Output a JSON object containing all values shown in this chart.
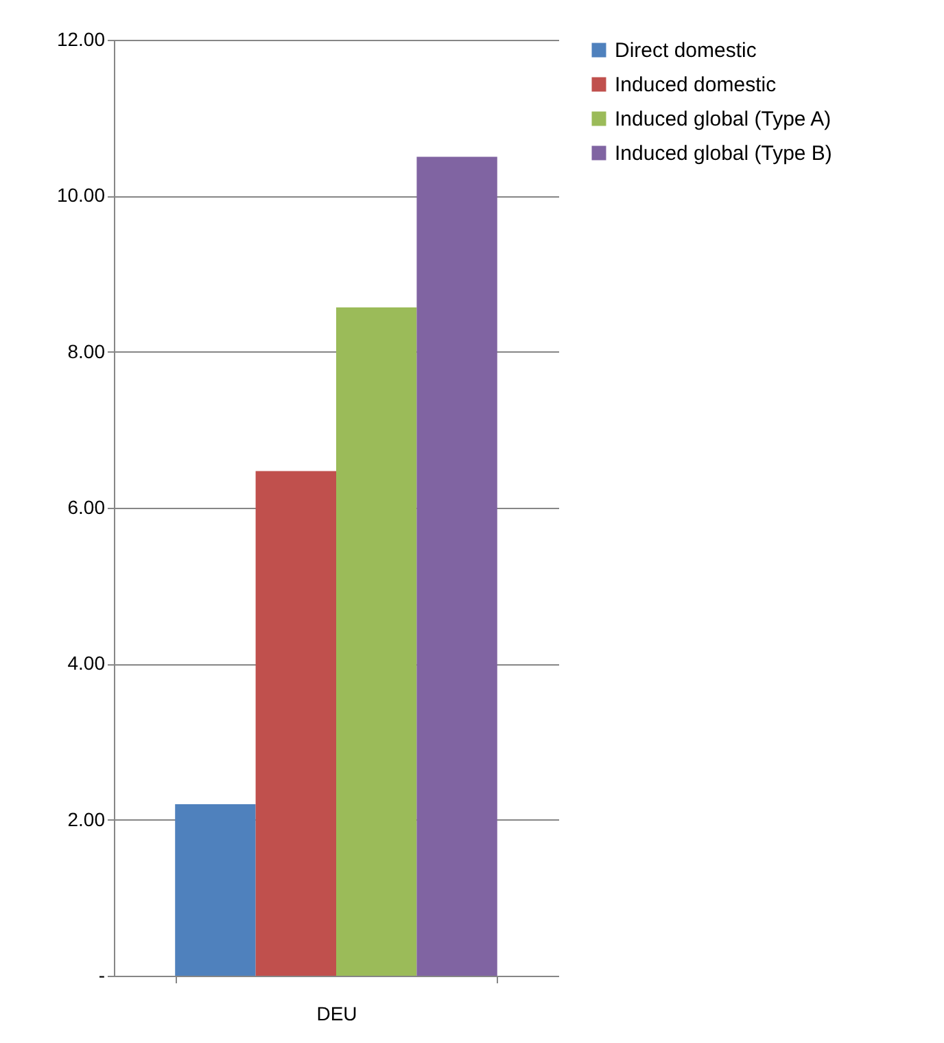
{
  "chart_data": {
    "type": "bar",
    "categories": [
      "DEU"
    ],
    "series": [
      {
        "name": "Direct domestic",
        "color": "#4f81bd",
        "values": [
          2.2
        ]
      },
      {
        "name": "Induced domestic",
        "color": "#c0504d",
        "values": [
          6.47
        ]
      },
      {
        "name": "Induced global (Type A)",
        "color": "#9bbb59",
        "values": [
          8.57
        ]
      },
      {
        "name": "Induced global (Type B)",
        "color": "#8064a2",
        "values": [
          10.5
        ]
      }
    ],
    "ylim": [
      0,
      12
    ],
    "yticks": [
      {
        "value": 0,
        "label": "-"
      },
      {
        "value": 2,
        "label": "2.00"
      },
      {
        "value": 4,
        "label": "4.00"
      },
      {
        "value": 6,
        "label": "6.00"
      },
      {
        "value": 8,
        "label": "8.00"
      },
      {
        "value": 10,
        "label": "10.00"
      },
      {
        "value": 12,
        "label": "12.00"
      }
    ],
    "grid": "y",
    "legend": "right"
  }
}
